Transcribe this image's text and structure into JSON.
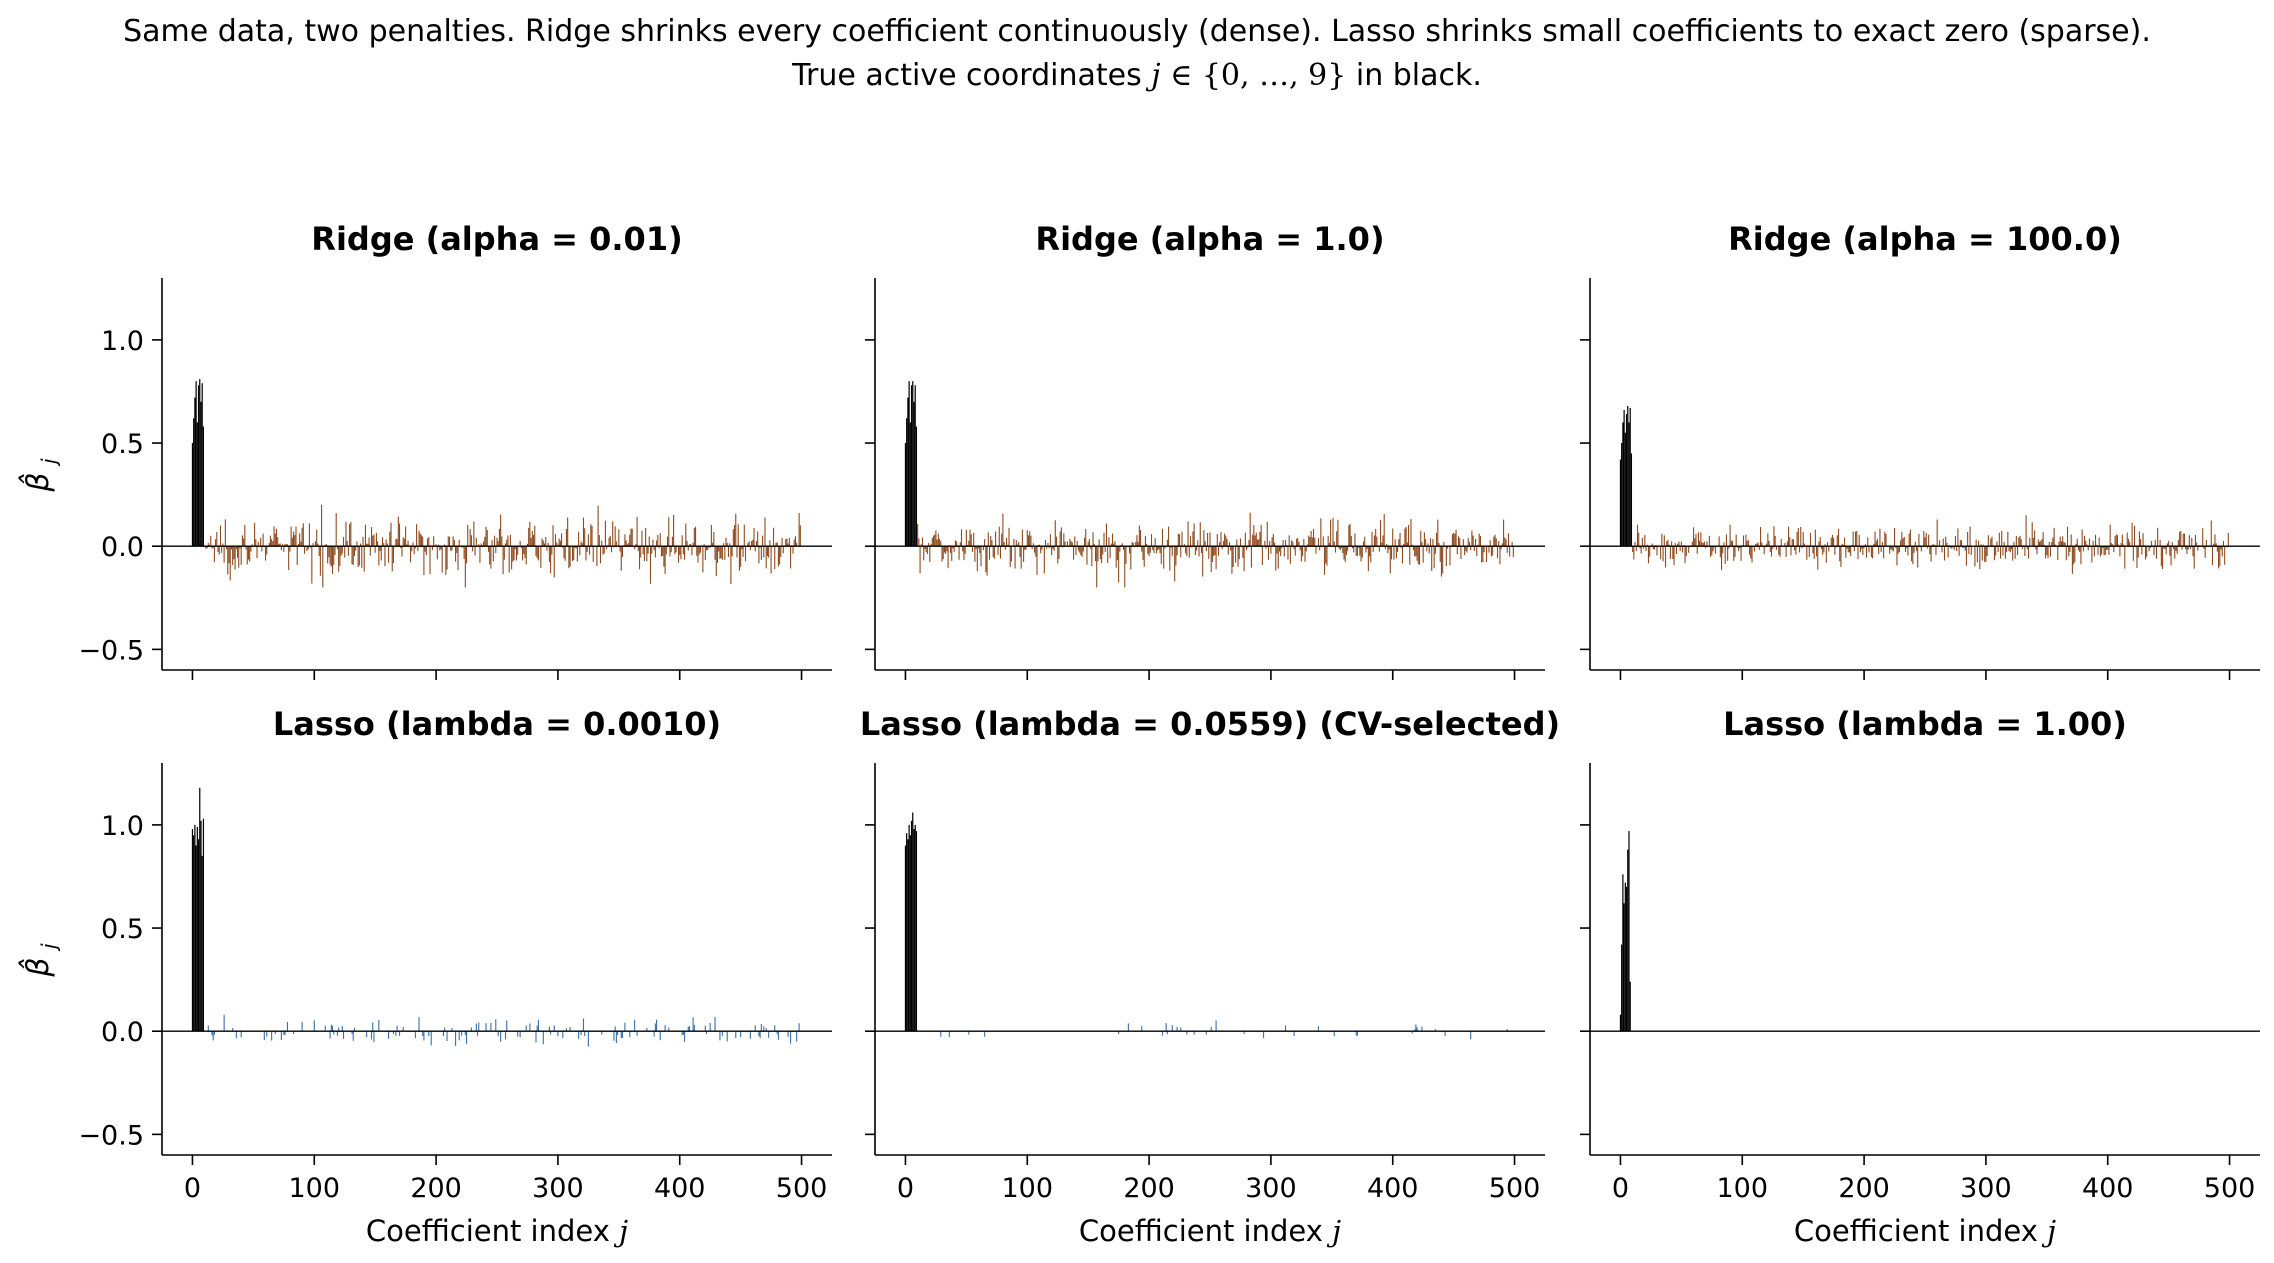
{
  "figure": {
    "suptitle_line1": "Same data, two penalties. Ridge shrinks every coefficient continuously (dense). Lasso shrinks small coefficients to exact zero (sparse).",
    "suptitle_line2_pre": "True active coordinates ",
    "suptitle_line2_math_j": "j",
    "suptitle_line2_math_set": " ∈ {0, …, 9}",
    "suptitle_line2_post": " in black."
  },
  "colors": {
    "true_active": "#000000",
    "ridge_inactive": "#8c4a1e",
    "lasso_inactive": "#3a6ea5",
    "axis": "#000000",
    "zero_line": "#000000"
  },
  "chart_data": [
    {
      "type": "bar",
      "title": "Ridge (alpha = 0.01)",
      "xlabel": "",
      "ylabel": "β̂_j",
      "xlim": [
        -25,
        525
      ],
      "ylim": [
        -0.6,
        1.3
      ],
      "xticks": [
        0,
        100,
        200,
        300,
        400,
        500
      ],
      "yticks": [
        -0.5,
        0.0,
        0.5,
        1.0
      ],
      "xticklabels_shown": false,
      "n_coefficients": 500,
      "active": [
        0,
        1,
        2,
        3,
        4,
        5,
        6,
        7,
        8,
        9
      ],
      "active_values": [
        0.5,
        0.62,
        0.72,
        0.8,
        0.6,
        0.78,
        0.81,
        0.7,
        0.79,
        0.58
      ],
      "inactive_color": "#8c4a1e",
      "inactive_abs_max": 0.2,
      "inactive_pattern": "dense nonzero"
    },
    {
      "type": "bar",
      "title": "Ridge (alpha = 1.0)",
      "xlabel": "",
      "ylabel": "",
      "xlim": [
        -25,
        525
      ],
      "ylim": [
        -0.6,
        1.3
      ],
      "xticks": [
        0,
        100,
        200,
        300,
        400,
        500
      ],
      "yticks": [
        -0.5,
        0.0,
        0.5,
        1.0
      ],
      "xticklabels_shown": false,
      "n_coefficients": 500,
      "active": [
        0,
        1,
        2,
        3,
        4,
        5,
        6,
        7,
        8,
        9
      ],
      "active_values": [
        0.5,
        0.62,
        0.72,
        0.8,
        0.6,
        0.78,
        0.8,
        0.7,
        0.78,
        0.58
      ],
      "inactive_color": "#8c4a1e",
      "inactive_abs_max": 0.2,
      "inactive_pattern": "dense nonzero"
    },
    {
      "type": "bar",
      "title": "Ridge (alpha = 100.0)",
      "xlabel": "",
      "ylabel": "",
      "xlim": [
        -25,
        525
      ],
      "ylim": [
        -0.6,
        1.3
      ],
      "xticks": [
        0,
        100,
        200,
        300,
        400,
        500
      ],
      "yticks": [
        -0.5,
        0.0,
        0.5,
        1.0
      ],
      "xticklabels_shown": false,
      "n_coefficients": 500,
      "active": [
        0,
        1,
        2,
        3,
        4,
        5,
        6,
        7,
        8,
        9
      ],
      "active_values": [
        0.42,
        0.5,
        0.6,
        0.66,
        0.55,
        0.64,
        0.68,
        0.6,
        0.67,
        0.45
      ],
      "inactive_color": "#8c4a1e",
      "inactive_abs_max": 0.15,
      "inactive_pattern": "dense nonzero"
    },
    {
      "type": "bar",
      "title": "Lasso (lambda = 0.0010)",
      "xlabel": "Coefficient index j",
      "ylabel": "β̂_j",
      "xlim": [
        -25,
        525
      ],
      "ylim": [
        -0.6,
        1.3
      ],
      "xticks": [
        0,
        100,
        200,
        300,
        400,
        500
      ],
      "yticks": [
        -0.5,
        0.0,
        0.5,
        1.0
      ],
      "xticklabels_shown": true,
      "n_coefficients": 500,
      "active": [
        0,
        1,
        2,
        3,
        4,
        5,
        6,
        7,
        8,
        9
      ],
      "active_values": [
        0.98,
        0.95,
        1.0,
        0.9,
        0.99,
        0.93,
        1.18,
        1.02,
        0.85,
        1.03
      ],
      "inactive_color": "#3a6ea5",
      "inactive_abs_max": 0.11,
      "inactive_pattern": "moderately sparse"
    },
    {
      "type": "bar",
      "title": "Lasso (lambda = 0.0559) (CV-selected)",
      "xlabel": "Coefficient index j",
      "ylabel": "",
      "xlim": [
        -25,
        525
      ],
      "ylim": [
        -0.6,
        1.3
      ],
      "xticks": [
        0,
        100,
        200,
        300,
        400,
        500
      ],
      "yticks": [
        -0.5,
        0.0,
        0.5,
        1.0
      ],
      "xticklabels_shown": true,
      "n_coefficients": 500,
      "active": [
        0,
        1,
        2,
        3,
        4,
        5,
        6,
        7,
        8,
        9
      ],
      "active_values": [
        0.9,
        0.96,
        0.93,
        1.0,
        0.95,
        1.02,
        1.06,
        0.98,
        1.0,
        0.97
      ],
      "inactive_color": "#3a6ea5",
      "inactive_abs_max": 0.07,
      "inactive_pattern": "very sparse"
    },
    {
      "type": "bar",
      "title": "Lasso (lambda = 1.00)",
      "xlabel": "Coefficient index j",
      "ylabel": "",
      "xlim": [
        -25,
        525
      ],
      "ylim": [
        -0.6,
        1.3
      ],
      "xticks": [
        0,
        100,
        200,
        300,
        400,
        500
      ],
      "yticks": [
        -0.5,
        0.0,
        0.5,
        1.0
      ],
      "xticklabels_shown": true,
      "n_coefficients": 500,
      "active": [
        0,
        1,
        2,
        3,
        4,
        5,
        6,
        7,
        8,
        9
      ],
      "active_values": [
        0.08,
        0.42,
        0.76,
        0.62,
        0.72,
        0.7,
        0.88,
        0.97,
        0.24,
        0.0
      ],
      "inactive_color": "#3a6ea5",
      "inactive_abs_max": 0.0,
      "inactive_pattern": "all zero"
    }
  ]
}
